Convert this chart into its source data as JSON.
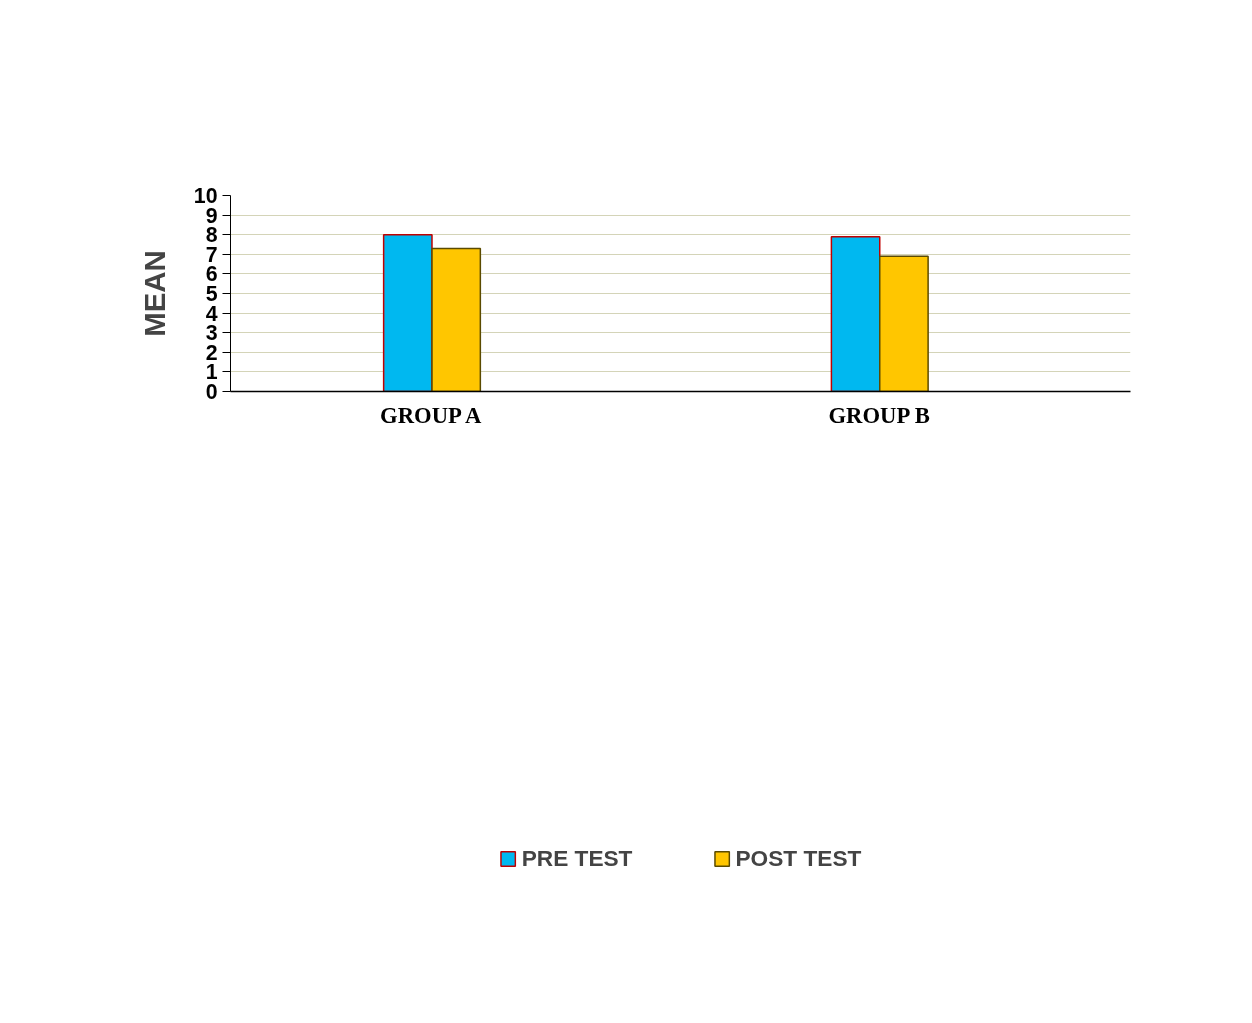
{
  "chart_data": {
    "type": "bar",
    "ylabel": "MEAN",
    "categories": [
      "GROUP A",
      "GROUP B"
    ],
    "series": [
      {
        "name": "PRE TEST",
        "color": "#00b8f0",
        "values": [
          8.0,
          7.9
        ]
      },
      {
        "name": "POST TEST",
        "color": "#ffc600",
        "values": [
          7.3,
          6.9
        ]
      }
    ],
    "ylim": [
      0,
      10
    ],
    "yticks": [
      0,
      1,
      2,
      3,
      4,
      5,
      6,
      7,
      8,
      9,
      10
    ],
    "grid": "y",
    "legend": "bottom"
  }
}
